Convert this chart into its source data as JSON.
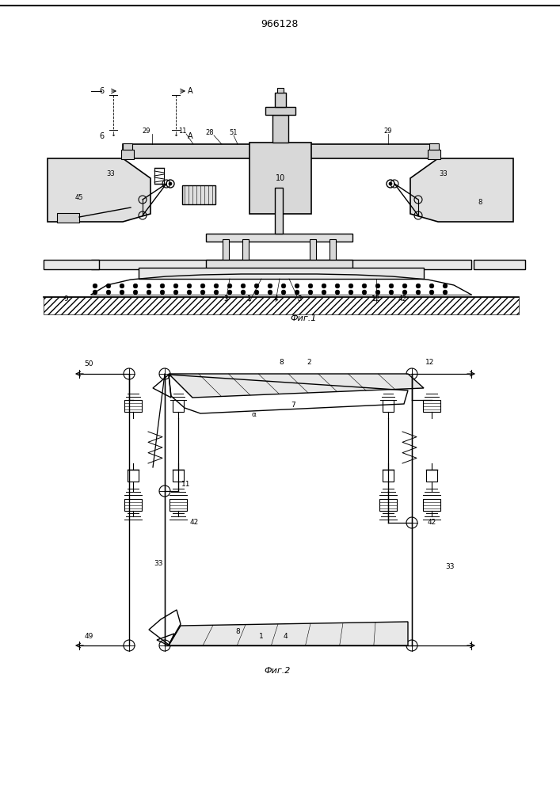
{
  "title": "966128",
  "fig1_label": "Фиг.1",
  "fig2_label": "Фиг.2",
  "bg_color": "#ffffff",
  "line_color": "#000000"
}
